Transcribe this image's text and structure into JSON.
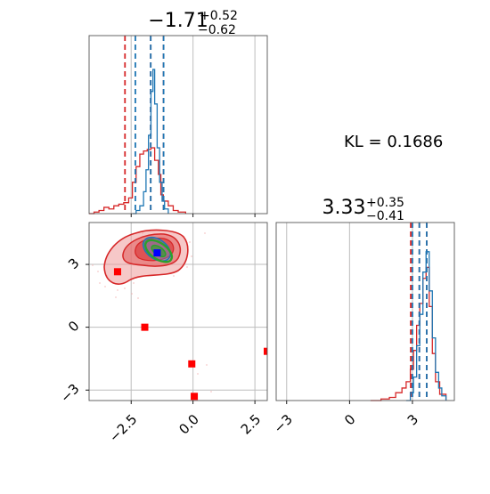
{
  "kl_label": "KL = 0.1686",
  "chart_data": [
    {
      "type": "histogram",
      "panel": "marginal-x",
      "title_value": "−1.71",
      "title_plus": "+0.52",
      "title_minus": "−0.62",
      "xlim": [
        -4.2,
        3.0
      ],
      "xticks": [
        -2.5,
        0.0,
        2.5
      ],
      "xtick_labels": [
        "−2.5",
        "0.0",
        "2.5"
      ],
      "grid": true,
      "series": [
        {
          "color": "#1f77b4",
          "bins": [
            [
              -2.45,
              0.0
            ],
            [
              -2.3,
              0.02
            ],
            [
              -2.15,
              0.05
            ],
            [
              -2.0,
              0.14
            ],
            [
              -1.9,
              0.28
            ],
            [
              -1.8,
              0.5
            ],
            [
              -1.7,
              0.78
            ],
            [
              -1.62,
              0.92
            ],
            [
              -1.55,
              0.7
            ],
            [
              -1.45,
              0.42
            ],
            [
              -1.35,
              0.2
            ],
            [
              -1.25,
              0.08
            ],
            [
              -1.15,
              0.03
            ],
            [
              -1.0,
              0.0
            ]
          ],
          "quantiles": [
            -2.33,
            -1.71,
            -1.19
          ]
        },
        {
          "color": "#d62728",
          "bins": [
            [
              -4.2,
              0.0
            ],
            [
              -4.0,
              0.01
            ],
            [
              -3.8,
              0.02
            ],
            [
              -3.6,
              0.04
            ],
            [
              -3.4,
              0.03
            ],
            [
              -3.2,
              0.05
            ],
            [
              -3.0,
              0.06
            ],
            [
              -2.8,
              0.07
            ],
            [
              -2.6,
              0.1
            ],
            [
              -2.45,
              0.2
            ],
            [
              -2.3,
              0.3
            ],
            [
              -2.15,
              0.38
            ],
            [
              -2.0,
              0.4
            ],
            [
              -1.85,
              0.41
            ],
            [
              -1.7,
              0.42
            ],
            [
              -1.55,
              0.34
            ],
            [
              -1.4,
              0.25
            ],
            [
              -1.3,
              0.12
            ],
            [
              -1.2,
              0.08
            ],
            [
              -1.0,
              0.05
            ],
            [
              -0.8,
              0.02
            ],
            [
              -0.6,
              0.01
            ],
            [
              -0.3,
              0.0
            ]
          ],
          "quantiles": [
            -2.75,
            -1.71,
            -1.19
          ]
        }
      ]
    },
    {
      "type": "scatter",
      "panel": "joint",
      "xlim": [
        -4.2,
        3.0
      ],
      "ylim": [
        -3.5,
        5.0
      ],
      "xticks": [
        -2.5,
        0.0,
        2.5
      ],
      "xtick_labels": [
        "−2.5",
        "0.0",
        "2.5"
      ],
      "yticks": [
        3,
        0,
        -3
      ],
      "ytick_labels": [
        "3",
        "0",
        "−3"
      ],
      "grid": true,
      "red_markers": [
        [
          -3.05,
          2.65
        ],
        [
          -1.95,
          0.0
        ],
        [
          -0.05,
          -1.75
        ],
        [
          0.05,
          -3.3
        ],
        [
          3.0,
          -1.15
        ]
      ],
      "blue_markers": [
        [
          -1.45,
          3.55
        ]
      ],
      "contour_colors": [
        "#d62728",
        "#1f77b4",
        "#2ca02c"
      ]
    },
    {
      "type": "histogram",
      "panel": "marginal-y",
      "title_value": "3.33",
      "title_plus": "+0.35",
      "title_minus": "−0.41",
      "xlim": [
        -3.5,
        5.0
      ],
      "xticks": [
        -3,
        0,
        3
      ],
      "xtick_labels": [
        "−3",
        "0",
        "3"
      ],
      "grid": true,
      "series": [
        {
          "color": "#1f77b4",
          "bins": [
            [
              2.7,
              0.0
            ],
            [
              2.9,
              0.05
            ],
            [
              3.05,
              0.15
            ],
            [
              3.2,
              0.35
            ],
            [
              3.35,
              0.55
            ],
            [
              3.5,
              0.82
            ],
            [
              3.65,
              0.95
            ],
            [
              3.8,
              0.7
            ],
            [
              3.95,
              0.4
            ],
            [
              4.1,
              0.18
            ],
            [
              4.25,
              0.08
            ],
            [
              4.4,
              0.03
            ],
            [
              4.6,
              0.0
            ]
          ],
          "quantiles": [
            3.0,
            3.33,
            3.68
          ]
        },
        {
          "color": "#d62728",
          "bins": [
            [
              1.0,
              0.0
            ],
            [
              1.5,
              0.01
            ],
            [
              1.9,
              0.02
            ],
            [
              2.2,
              0.05
            ],
            [
              2.5,
              0.08
            ],
            [
              2.7,
              0.12
            ],
            [
              2.9,
              0.2
            ],
            [
              3.05,
              0.32
            ],
            [
              3.2,
              0.48
            ],
            [
              3.35,
              0.62
            ],
            [
              3.5,
              0.78
            ],
            [
              3.65,
              0.85
            ],
            [
              3.8,
              0.6
            ],
            [
              3.95,
              0.3
            ],
            [
              4.1,
              0.12
            ],
            [
              4.3,
              0.04
            ],
            [
              4.6,
              0.0
            ]
          ],
          "quantiles": [
            2.92,
            3.33,
            3.68
          ]
        }
      ]
    }
  ]
}
